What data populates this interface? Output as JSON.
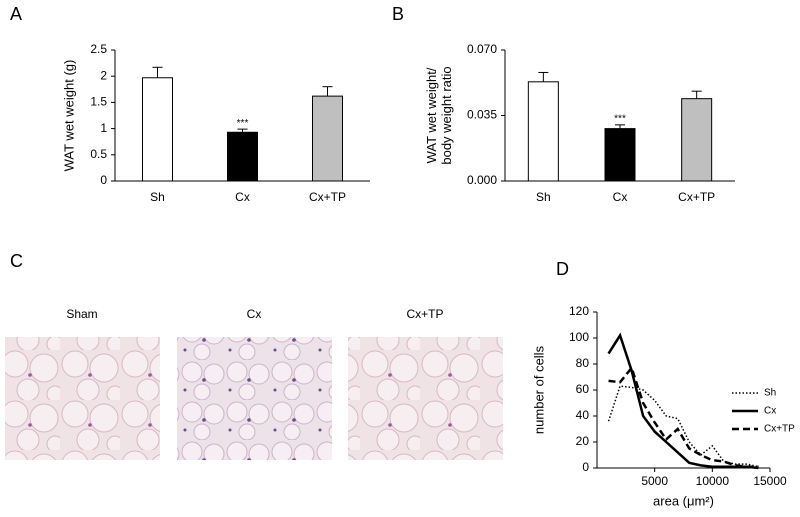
{
  "panel_labels": [
    "A",
    "B",
    "C",
    "D"
  ],
  "chart_data": [
    {
      "type": "bar",
      "y_label": [
        "WAT wet weight (g)"
      ],
      "categories": [
        "Sh",
        "Cx",
        "Cx+TP"
      ],
      "values": [
        1.97,
        0.93,
        1.62
      ],
      "errors": [
        0.2,
        0.06,
        0.18
      ],
      "colors": [
        "#ffffff",
        "#000000",
        "#bfbfbf"
      ],
      "ylim": [
        0,
        2.5
      ],
      "yticks": [
        0,
        0.5,
        1,
        1.5,
        2,
        2.5
      ],
      "annotation": {
        "category": "Cx",
        "text": "***"
      }
    },
    {
      "type": "bar",
      "y_label": [
        "WAT wet weight/",
        "body weight ratio"
      ],
      "categories": [
        "Sh",
        "Cx",
        "Cx+TP"
      ],
      "values": [
        0.053,
        0.028,
        0.044
      ],
      "errors": [
        0.005,
        0.002,
        0.004
      ],
      "colors": [
        "#ffffff",
        "#000000",
        "#bfbfbf"
      ],
      "ylim": [
        0,
        0.07
      ],
      "yticks": [
        {
          "value": 0,
          "label": "0.000"
        },
        {
          "value": 0.035,
          "label": "0.035"
        },
        {
          "value": 0.07,
          "label": "0.070"
        }
      ],
      "annotation": {
        "category": "Cx",
        "text": "***"
      }
    },
    {
      "type": "line",
      "x_label": "area (μm²)",
      "y_label": [
        "number of cells"
      ],
      "x": [
        1000,
        2000,
        3000,
        4000,
        5000,
        6000,
        7000,
        8000,
        9000,
        10000,
        11000,
        12000,
        13000,
        14000
      ],
      "series": [
        {
          "name": "Sh",
          "color": "#000000",
          "dash": "1.5,2",
          "width": 1.5,
          "values": [
            36,
            63,
            62,
            60,
            52,
            40,
            38,
            20,
            10,
            17,
            5,
            3,
            3,
            1
          ]
        },
        {
          "name": "Cx",
          "color": "#000000",
          "dash": "none",
          "width": 2.5,
          "values": [
            88,
            102,
            75,
            40,
            28,
            20,
            12,
            4,
            2,
            1,
            1,
            1,
            1,
            0
          ]
        },
        {
          "name": "Cx+TP",
          "color": "#000000",
          "dash": "7,4",
          "width": 2.5,
          "values": [
            67,
            66,
            77,
            50,
            35,
            22,
            30,
            15,
            10,
            6,
            5,
            2,
            1,
            1
          ]
        }
      ],
      "xlim": [
        0,
        15000
      ],
      "xticks": [
        5000,
        10000,
        15000
      ],
      "ylim": [
        0,
        120
      ],
      "yticks": [
        0,
        20,
        40,
        60,
        80,
        100,
        120
      ]
    }
  ],
  "images": {
    "titles": [
      "Sham",
      "Cx",
      "Cx+TP"
    ]
  }
}
